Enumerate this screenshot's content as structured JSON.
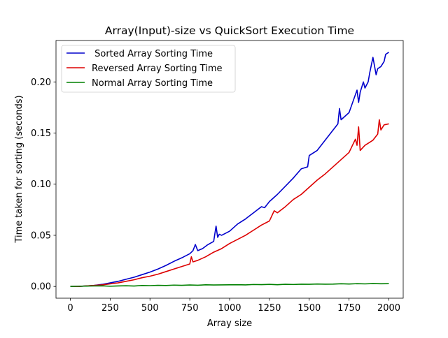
{
  "chart_data": {
    "type": "line",
    "title": "Array(Input)-size vs QuickSort Execution Time",
    "xlabel": "Array size",
    "ylabel": "Time taken for sorting (seconds)",
    "xlim": [
      -90,
      2090
    ],
    "ylim": [
      -0.0115,
      0.2405
    ],
    "xticks": [
      0,
      250,
      500,
      750,
      1000,
      1250,
      1500,
      1750,
      2000
    ],
    "xtick_labels": [
      "0",
      "250",
      "500",
      "750",
      "1000",
      "1250",
      "1500",
      "1750",
      "2000"
    ],
    "yticks": [
      0.0,
      0.05,
      0.1,
      0.15,
      0.2
    ],
    "ytick_labels": [
      "0.00",
      "0.05",
      "0.10",
      "0.15",
      "0.20"
    ],
    "grid": false,
    "legend": {
      "position": "top-left"
    },
    "series": [
      {
        "name": " Sorted Array Sorting Time",
        "color": "#0000cc",
        "x": [
          0,
          50,
          100,
          150,
          200,
          250,
          300,
          350,
          400,
          450,
          500,
          550,
          600,
          650,
          700,
          750,
          770,
          785,
          800,
          830,
          860,
          900,
          915,
          925,
          935,
          950,
          1000,
          1050,
          1100,
          1150,
          1200,
          1220,
          1250,
          1300,
          1350,
          1400,
          1450,
          1490,
          1500,
          1550,
          1600,
          1650,
          1680,
          1690,
          1700,
          1750,
          1800,
          1810,
          1820,
          1840,
          1850,
          1870,
          1880,
          1900,
          1920,
          1930,
          1950,
          1970,
          1980,
          2000
        ],
        "y": [
          0.0,
          0.0,
          0.0005,
          0.001,
          0.002,
          0.0035,
          0.005,
          0.007,
          0.009,
          0.0115,
          0.014,
          0.017,
          0.0205,
          0.0245,
          0.028,
          0.032,
          0.035,
          0.041,
          0.035,
          0.037,
          0.0405,
          0.044,
          0.059,
          0.048,
          0.051,
          0.05,
          0.054,
          0.061,
          0.066,
          0.072,
          0.078,
          0.077,
          0.083,
          0.09,
          0.098,
          0.106,
          0.115,
          0.117,
          0.128,
          0.133,
          0.143,
          0.153,
          0.159,
          0.174,
          0.163,
          0.17,
          0.192,
          0.18,
          0.19,
          0.2,
          0.194,
          0.2,
          0.209,
          0.224,
          0.207,
          0.213,
          0.215,
          0.22,
          0.227,
          0.229
        ]
      },
      {
        "name": "Reversed Array Sorting Time",
        "color": "#dd0000",
        "x": [
          0,
          50,
          100,
          150,
          200,
          250,
          300,
          350,
          400,
          450,
          500,
          550,
          600,
          650,
          700,
          750,
          760,
          770,
          800,
          850,
          900,
          950,
          1000,
          1050,
          1100,
          1150,
          1200,
          1250,
          1280,
          1300,
          1350,
          1400,
          1450,
          1500,
          1550,
          1600,
          1650,
          1700,
          1750,
          1790,
          1800,
          1810,
          1820,
          1850,
          1900,
          1930,
          1940,
          1950,
          1970,
          2000
        ],
        "y": [
          0.0,
          0.0,
          0.0005,
          0.001,
          0.0015,
          0.0025,
          0.0035,
          0.005,
          0.0065,
          0.0085,
          0.01,
          0.012,
          0.0145,
          0.017,
          0.0195,
          0.022,
          0.029,
          0.024,
          0.0255,
          0.029,
          0.0335,
          0.037,
          0.042,
          0.046,
          0.05,
          0.055,
          0.06,
          0.064,
          0.074,
          0.072,
          0.078,
          0.085,
          0.09,
          0.097,
          0.104,
          0.11,
          0.117,
          0.124,
          0.131,
          0.144,
          0.138,
          0.156,
          0.133,
          0.138,
          0.143,
          0.149,
          0.163,
          0.153,
          0.158,
          0.159
        ]
      },
      {
        "name": "Normal Array Sorting Time",
        "color": "#008000",
        "x": [
          0,
          50,
          100,
          150,
          200,
          250,
          300,
          350,
          400,
          450,
          500,
          550,
          600,
          650,
          700,
          750,
          800,
          850,
          900,
          950,
          1000,
          1050,
          1100,
          1150,
          1200,
          1250,
          1300,
          1350,
          1400,
          1450,
          1500,
          1550,
          1600,
          1650,
          1700,
          1750,
          1800,
          1850,
          1900,
          1950,
          2000
        ],
        "y": [
          0.0,
          0.0002,
          0.0003,
          0.0005,
          0.0006,
          0.0002,
          0.0005,
          0.0007,
          0.0004,
          0.0009,
          0.0008,
          0.0011,
          0.0009,
          0.0013,
          0.0011,
          0.0014,
          0.0012,
          0.0016,
          0.0014,
          0.0015,
          0.0016,
          0.0017,
          0.0015,
          0.0019,
          0.0018,
          0.002,
          0.0017,
          0.0021,
          0.0019,
          0.0022,
          0.0021,
          0.0024,
          0.0022,
          0.0023,
          0.0026,
          0.0024,
          0.0027,
          0.0025,
          0.0028,
          0.0026,
          0.0027
        ]
      }
    ]
  }
}
